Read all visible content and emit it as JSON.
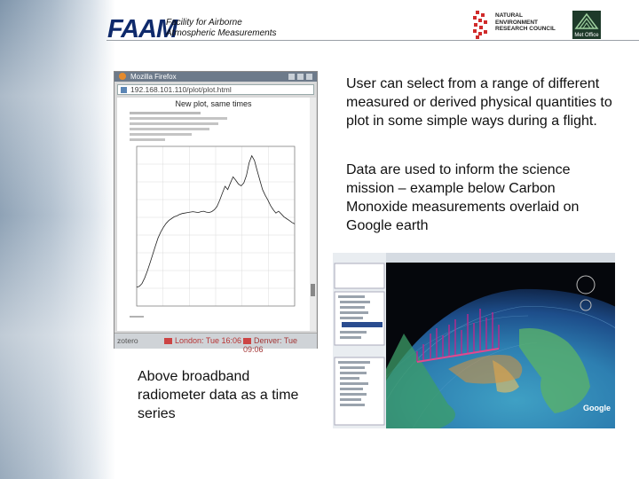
{
  "header": {
    "logo_text": "FAAM",
    "logo_subtitle_line1": "Facility for Airborne",
    "logo_subtitle_line2": "Atmospheric Measurements",
    "nerc_line1": "NATURAL",
    "nerc_line2": "ENVIRONMENT",
    "nerc_line3": "RESEARCH COUNCIL",
    "metoffice_label": "Met Office"
  },
  "browser": {
    "window_title": "Mozilla Firefox",
    "url": "192.168.101.110/plot/plot.html",
    "plot_title": "New plot, same times",
    "status_app": "zotero",
    "status_london": "London: Tue 16:06",
    "status_denver": "Denver: Tue 09:06"
  },
  "text": {
    "right_para1": "User can select from a range of different measured or derived physical quantities to plot in some simple ways during a flight.",
    "right_para2": "Data are used to inform the science mission – example below Carbon Monoxide measurements overlaid on Google earth",
    "left_caption": "Above broadband radiometer data as a time series"
  },
  "google_earth": {
    "brand_label": "Google"
  },
  "chart_data": {
    "type": "line",
    "title": "New plot, same times",
    "xlabel": "",
    "ylabel": "",
    "series": [
      {
        "values": [
          40,
          42,
          48,
          60,
          75,
          92,
          110,
          128,
          145,
          158,
          168,
          176,
          182,
          186,
          190,
          192,
          195,
          197,
          198,
          199,
          200,
          201,
          200,
          199,
          201,
          202,
          200,
          199,
          201,
          205,
          212,
          225,
          240,
          255,
          248,
          262,
          275,
          268,
          260,
          256,
          262,
          278,
          305,
          320,
          310,
          288,
          268,
          248,
          236,
          226,
          214,
          205,
          198,
          202,
          196,
          190,
          186,
          182,
          178,
          175
        ]
      }
    ],
    "grid": true
  }
}
